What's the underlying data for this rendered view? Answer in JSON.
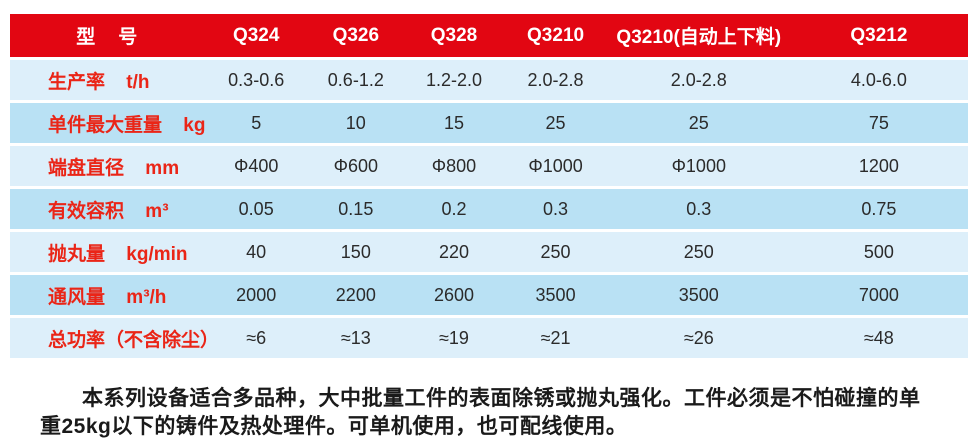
{
  "theme": {
    "header_bg": "#e20612",
    "header_text": "#ffffff",
    "row_light_bg": "#ddeffa",
    "row_dark_bg": "#b9e1f4",
    "label_color": "#ea2517",
    "value_color": "#2b2b2b"
  },
  "table": {
    "header": {
      "label": "型　号",
      "models": [
        "Q324",
        "Q326",
        "Q328",
        "Q3210",
        "Q3210(自动上下料)",
        "Q3212"
      ]
    },
    "rows": [
      {
        "label": "生产率",
        "unit": "t/h",
        "values": [
          "0.3-0.6",
          "0.6-1.2",
          "1.2-2.0",
          "2.0-2.8",
          "2.0-2.8",
          "4.0-6.0"
        ]
      },
      {
        "label": "单件最大重量",
        "unit": "kg",
        "values": [
          "5",
          "10",
          "15",
          "25",
          "25",
          "75"
        ]
      },
      {
        "label": "端盘直径",
        "unit": "mm",
        "values": [
          "Φ400",
          "Φ600",
          "Φ800",
          "Φ1000",
          "Φ1000",
          "1200"
        ]
      },
      {
        "label": "有效容积",
        "unit": "m³",
        "values": [
          "0.05",
          "0.15",
          "0.2",
          "0.3",
          "0.3",
          "0.75"
        ]
      },
      {
        "label": "抛丸量",
        "unit": "kg/min",
        "values": [
          "40",
          "150",
          "220",
          "250",
          "250",
          "500"
        ]
      },
      {
        "label": "通风量",
        "unit": "m³/h",
        "values": [
          "2000",
          "2200",
          "2600",
          "3500",
          "3500",
          "7000"
        ]
      },
      {
        "label": "总功率（不含除尘）",
        "unit": "",
        "values": [
          "≈6",
          "≈13",
          "≈19",
          "≈21",
          "≈26",
          "≈48"
        ]
      }
    ]
  },
  "description": "本系列设备适合多品种，大中批量工件的表面除锈或抛丸强化。工件必须是不怕碰撞的单重25kg以下的铸件及热处理件。可单机使用，也可配线使用。"
}
